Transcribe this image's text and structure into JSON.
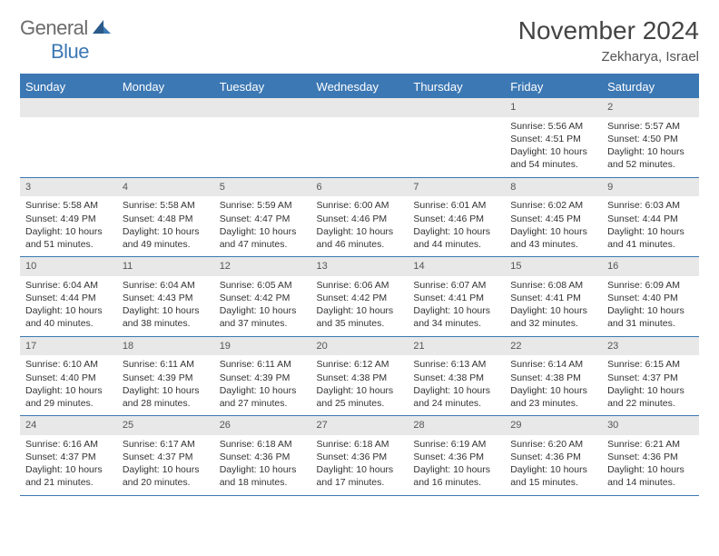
{
  "brand": {
    "word1": "General",
    "word2": "Blue"
  },
  "title": "November 2024",
  "location": "Zekharya, Israel",
  "colors": {
    "header_bg": "#3c78b4",
    "header_text": "#ffffff",
    "daynum_bg": "#e8e8e8",
    "border": "#3c78b4",
    "text": "#333333",
    "logo_gray": "#6b6b6b",
    "logo_blue": "#3c78b4"
  },
  "day_headers": [
    "Sunday",
    "Monday",
    "Tuesday",
    "Wednesday",
    "Thursday",
    "Friday",
    "Saturday"
  ],
  "weeks": [
    [
      {
        "n": "",
        "sr": "",
        "ss": "",
        "dl": ""
      },
      {
        "n": "",
        "sr": "",
        "ss": "",
        "dl": ""
      },
      {
        "n": "",
        "sr": "",
        "ss": "",
        "dl": ""
      },
      {
        "n": "",
        "sr": "",
        "ss": "",
        "dl": ""
      },
      {
        "n": "",
        "sr": "",
        "ss": "",
        "dl": ""
      },
      {
        "n": "1",
        "sr": "Sunrise: 5:56 AM",
        "ss": "Sunset: 4:51 PM",
        "dl": "Daylight: 10 hours and 54 minutes."
      },
      {
        "n": "2",
        "sr": "Sunrise: 5:57 AM",
        "ss": "Sunset: 4:50 PM",
        "dl": "Daylight: 10 hours and 52 minutes."
      }
    ],
    [
      {
        "n": "3",
        "sr": "Sunrise: 5:58 AM",
        "ss": "Sunset: 4:49 PM",
        "dl": "Daylight: 10 hours and 51 minutes."
      },
      {
        "n": "4",
        "sr": "Sunrise: 5:58 AM",
        "ss": "Sunset: 4:48 PM",
        "dl": "Daylight: 10 hours and 49 minutes."
      },
      {
        "n": "5",
        "sr": "Sunrise: 5:59 AM",
        "ss": "Sunset: 4:47 PM",
        "dl": "Daylight: 10 hours and 47 minutes."
      },
      {
        "n": "6",
        "sr": "Sunrise: 6:00 AM",
        "ss": "Sunset: 4:46 PM",
        "dl": "Daylight: 10 hours and 46 minutes."
      },
      {
        "n": "7",
        "sr": "Sunrise: 6:01 AM",
        "ss": "Sunset: 4:46 PM",
        "dl": "Daylight: 10 hours and 44 minutes."
      },
      {
        "n": "8",
        "sr": "Sunrise: 6:02 AM",
        "ss": "Sunset: 4:45 PM",
        "dl": "Daylight: 10 hours and 43 minutes."
      },
      {
        "n": "9",
        "sr": "Sunrise: 6:03 AM",
        "ss": "Sunset: 4:44 PM",
        "dl": "Daylight: 10 hours and 41 minutes."
      }
    ],
    [
      {
        "n": "10",
        "sr": "Sunrise: 6:04 AM",
        "ss": "Sunset: 4:44 PM",
        "dl": "Daylight: 10 hours and 40 minutes."
      },
      {
        "n": "11",
        "sr": "Sunrise: 6:04 AM",
        "ss": "Sunset: 4:43 PM",
        "dl": "Daylight: 10 hours and 38 minutes."
      },
      {
        "n": "12",
        "sr": "Sunrise: 6:05 AM",
        "ss": "Sunset: 4:42 PM",
        "dl": "Daylight: 10 hours and 37 minutes."
      },
      {
        "n": "13",
        "sr": "Sunrise: 6:06 AM",
        "ss": "Sunset: 4:42 PM",
        "dl": "Daylight: 10 hours and 35 minutes."
      },
      {
        "n": "14",
        "sr": "Sunrise: 6:07 AM",
        "ss": "Sunset: 4:41 PM",
        "dl": "Daylight: 10 hours and 34 minutes."
      },
      {
        "n": "15",
        "sr": "Sunrise: 6:08 AM",
        "ss": "Sunset: 4:41 PM",
        "dl": "Daylight: 10 hours and 32 minutes."
      },
      {
        "n": "16",
        "sr": "Sunrise: 6:09 AM",
        "ss": "Sunset: 4:40 PM",
        "dl": "Daylight: 10 hours and 31 minutes."
      }
    ],
    [
      {
        "n": "17",
        "sr": "Sunrise: 6:10 AM",
        "ss": "Sunset: 4:40 PM",
        "dl": "Daylight: 10 hours and 29 minutes."
      },
      {
        "n": "18",
        "sr": "Sunrise: 6:11 AM",
        "ss": "Sunset: 4:39 PM",
        "dl": "Daylight: 10 hours and 28 minutes."
      },
      {
        "n": "19",
        "sr": "Sunrise: 6:11 AM",
        "ss": "Sunset: 4:39 PM",
        "dl": "Daylight: 10 hours and 27 minutes."
      },
      {
        "n": "20",
        "sr": "Sunrise: 6:12 AM",
        "ss": "Sunset: 4:38 PM",
        "dl": "Daylight: 10 hours and 25 minutes."
      },
      {
        "n": "21",
        "sr": "Sunrise: 6:13 AM",
        "ss": "Sunset: 4:38 PM",
        "dl": "Daylight: 10 hours and 24 minutes."
      },
      {
        "n": "22",
        "sr": "Sunrise: 6:14 AM",
        "ss": "Sunset: 4:38 PM",
        "dl": "Daylight: 10 hours and 23 minutes."
      },
      {
        "n": "23",
        "sr": "Sunrise: 6:15 AM",
        "ss": "Sunset: 4:37 PM",
        "dl": "Daylight: 10 hours and 22 minutes."
      }
    ],
    [
      {
        "n": "24",
        "sr": "Sunrise: 6:16 AM",
        "ss": "Sunset: 4:37 PM",
        "dl": "Daylight: 10 hours and 21 minutes."
      },
      {
        "n": "25",
        "sr": "Sunrise: 6:17 AM",
        "ss": "Sunset: 4:37 PM",
        "dl": "Daylight: 10 hours and 20 minutes."
      },
      {
        "n": "26",
        "sr": "Sunrise: 6:18 AM",
        "ss": "Sunset: 4:36 PM",
        "dl": "Daylight: 10 hours and 18 minutes."
      },
      {
        "n": "27",
        "sr": "Sunrise: 6:18 AM",
        "ss": "Sunset: 4:36 PM",
        "dl": "Daylight: 10 hours and 17 minutes."
      },
      {
        "n": "28",
        "sr": "Sunrise: 6:19 AM",
        "ss": "Sunset: 4:36 PM",
        "dl": "Daylight: 10 hours and 16 minutes."
      },
      {
        "n": "29",
        "sr": "Sunrise: 6:20 AM",
        "ss": "Sunset: 4:36 PM",
        "dl": "Daylight: 10 hours and 15 minutes."
      },
      {
        "n": "30",
        "sr": "Sunrise: 6:21 AM",
        "ss": "Sunset: 4:36 PM",
        "dl": "Daylight: 10 hours and 14 minutes."
      }
    ]
  ]
}
